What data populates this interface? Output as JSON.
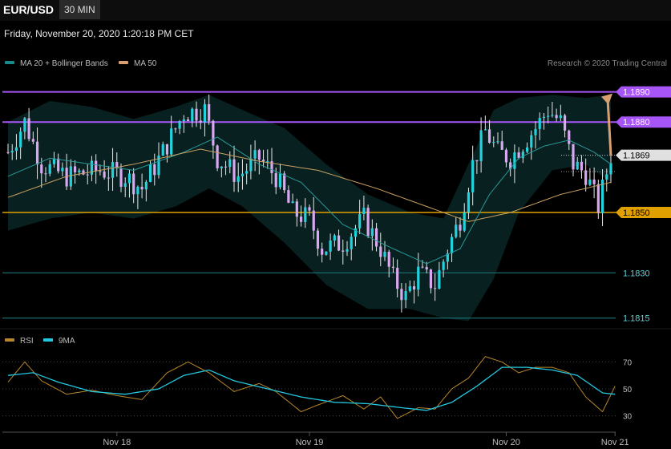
{
  "header": {
    "symbol": "EUR/USD",
    "timeframe": "30 MIN",
    "datetime": "Friday, November 20, 2020 1:20:18 PM CET"
  },
  "legend": {
    "items": [
      {
        "label": "MA 20 + Bollinger Bands",
        "color": "#1a8a8a"
      },
      {
        "label": "MA 50",
        "color": "#d8a070"
      }
    ],
    "credit": "Research © 2020 Trading Central"
  },
  "rsi_legend": {
    "items": [
      {
        "label": "RSI",
        "color": "#b8862b"
      },
      {
        "label": "9MA",
        "color": "#22c8e0"
      }
    ]
  },
  "colors": {
    "up": "#22d3dd",
    "down": "#d8a8f0",
    "resistance": "#a855f7",
    "support": "#e0a000",
    "teal_line": "#1a6b6b",
    "arrow": "#d8a070",
    "last_price": "#e0e0e0"
  },
  "chart_data": [
    {
      "type": "candlestick",
      "title": "",
      "y_range": [
        1.1812,
        1.1896
      ],
      "levels": [
        {
          "value": 1.189,
          "label": "1.1890",
          "kind": "resistance"
        },
        {
          "value": 1.188,
          "label": "1.1880",
          "kind": "resistance"
        },
        {
          "value": 1.1869,
          "label": "1.1869",
          "kind": "last"
        },
        {
          "value": 1.185,
          "label": "1.1850",
          "kind": "support"
        },
        {
          "value": 1.183,
          "label": "1.1830",
          "kind": "minor"
        },
        {
          "value": 1.1815,
          "label": "1.1815",
          "kind": "minor"
        }
      ],
      "x_tick_labels": [
        "Nov 18",
        "Nov 19",
        "Nov 20",
        "Nov 21"
      ],
      "x_tick_index": [
        26,
        72,
        119,
        145
      ],
      "arrow": {
        "from_index": 144,
        "from": 1.1869,
        "to_index": 158,
        "to": 1.189
      },
      "close_path": [
        [
          0,
          1.187
        ],
        [
          4,
          1.188
        ],
        [
          8,
          1.1866
        ],
        [
          14,
          1.1862
        ],
        [
          22,
          1.1864
        ],
        [
          28,
          1.1862
        ],
        [
          32,
          1.1858
        ],
        [
          37,
          1.187
        ],
        [
          42,
          1.1883
        ],
        [
          47,
          1.1884
        ],
        [
          50,
          1.1868
        ],
        [
          55,
          1.1862
        ],
        [
          60,
          1.1868
        ],
        [
          64,
          1.1862
        ],
        [
          68,
          1.185
        ],
        [
          72,
          1.1848
        ],
        [
          75,
          1.1838
        ],
        [
          80,
          1.184
        ],
        [
          85,
          1.1848
        ],
        [
          89,
          1.1838
        ],
        [
          92,
          1.1828
        ],
        [
          95,
          1.1822
        ],
        [
          98,
          1.183
        ],
        [
          102,
          1.1826
        ],
        [
          105,
          1.1838
        ],
        [
          108,
          1.1848
        ],
        [
          111,
          1.1866
        ],
        [
          114,
          1.1877
        ],
        [
          117,
          1.187
        ],
        [
          120,
          1.1868
        ],
        [
          123,
          1.1873
        ],
        [
          126,
          1.1878
        ],
        [
          129,
          1.1884
        ],
        [
          132,
          1.188
        ],
        [
          135,
          1.1866
        ],
        [
          138,
          1.1863
        ],
        [
          141,
          1.1852
        ],
        [
          144,
          1.1869
        ]
      ],
      "candle_count": 145,
      "ma20_path": [
        [
          0,
          1.1862
        ],
        [
          10,
          1.1868
        ],
        [
          20,
          1.1866
        ],
        [
          30,
          1.1864
        ],
        [
          42,
          1.187
        ],
        [
          50,
          1.1875
        ],
        [
          60,
          1.1866
        ],
        [
          70,
          1.186
        ],
        [
          80,
          1.1846
        ],
        [
          92,
          1.1838
        ],
        [
          100,
          1.1833
        ],
        [
          108,
          1.1838
        ],
        [
          115,
          1.1856
        ],
        [
          122,
          1.1868
        ],
        [
          128,
          1.1872
        ],
        [
          134,
          1.1874
        ],
        [
          140,
          1.187
        ],
        [
          144,
          1.1866
        ]
      ],
      "ma50_path": [
        [
          0,
          1.1855
        ],
        [
          14,
          1.1862
        ],
        [
          30,
          1.1866
        ],
        [
          46,
          1.1871
        ],
        [
          60,
          1.1867
        ],
        [
          74,
          1.1864
        ],
        [
          88,
          1.1858
        ],
        [
          100,
          1.1852
        ],
        [
          110,
          1.1847
        ],
        [
          120,
          1.185
        ],
        [
          132,
          1.1856
        ],
        [
          144,
          1.186
        ]
      ],
      "bb_upper_path": [
        [
          0,
          1.188
        ],
        [
          10,
          1.1887
        ],
        [
          20,
          1.1885
        ],
        [
          30,
          1.1881
        ],
        [
          40,
          1.1885
        ],
        [
          48,
          1.1889
        ],
        [
          56,
          1.1884
        ],
        [
          66,
          1.1878
        ],
        [
          76,
          1.1866
        ],
        [
          86,
          1.1856
        ],
        [
          96,
          1.185
        ],
        [
          104,
          1.1848
        ],
        [
          110,
          1.1866
        ],
        [
          116,
          1.1884
        ],
        [
          122,
          1.1888
        ],
        [
          130,
          1.1889
        ],
        [
          138,
          1.1888
        ],
        [
          144,
          1.1889
        ]
      ],
      "bb_lower_path": [
        [
          0,
          1.1844
        ],
        [
          10,
          1.1848
        ],
        [
          20,
          1.185
        ],
        [
          30,
          1.1848
        ],
        [
          40,
          1.1852
        ],
        [
          48,
          1.1858
        ],
        [
          56,
          1.1852
        ],
        [
          66,
          1.184
        ],
        [
          76,
          1.1826
        ],
        [
          86,
          1.1818
        ],
        [
          96,
          1.1818
        ],
        [
          104,
          1.1815
        ],
        [
          110,
          1.1814
        ],
        [
          116,
          1.1828
        ],
        [
          122,
          1.185
        ],
        [
          130,
          1.1864
        ],
        [
          138,
          1.1866
        ],
        [
          144,
          1.186
        ]
      ]
    },
    {
      "type": "line",
      "title": "",
      "y_range": [
        22,
        78
      ],
      "y_ticks": [
        30,
        50,
        70
      ],
      "series": [
        {
          "name": "RSI",
          "path": [
            [
              0,
              55
            ],
            [
              4,
              70
            ],
            [
              8,
              56
            ],
            [
              14,
              46
            ],
            [
              20,
              49
            ],
            [
              26,
              45
            ],
            [
              32,
              42
            ],
            [
              38,
              62
            ],
            [
              43,
              70
            ],
            [
              48,
              62
            ],
            [
              54,
              48
            ],
            [
              60,
              54
            ],
            [
              64,
              48
            ],
            [
              70,
              33
            ],
            [
              74,
              38
            ],
            [
              80,
              45
            ],
            [
              85,
              35
            ],
            [
              89,
              44
            ],
            [
              93,
              28
            ],
            [
              98,
              36
            ],
            [
              102,
              35
            ],
            [
              106,
              50
            ],
            [
              110,
              58
            ],
            [
              114,
              74
            ],
            [
              118,
              70
            ],
            [
              122,
              62
            ],
            [
              126,
              66
            ],
            [
              130,
              66
            ],
            [
              134,
              62
            ],
            [
              138,
              44
            ],
            [
              142,
              33
            ],
            [
              145,
              52
            ]
          ]
        },
        {
          "name": "9MA",
          "path": [
            [
              0,
              60
            ],
            [
              6,
              62
            ],
            [
              12,
              55
            ],
            [
              20,
              48
            ],
            [
              28,
              46
            ],
            [
              36,
              50
            ],
            [
              42,
              60
            ],
            [
              48,
              64
            ],
            [
              54,
              56
            ],
            [
              62,
              50
            ],
            [
              70,
              44
            ],
            [
              78,
              40
            ],
            [
              86,
              39
            ],
            [
              94,
              36
            ],
            [
              100,
              34
            ],
            [
              106,
              40
            ],
            [
              112,
              52
            ],
            [
              118,
              66
            ],
            [
              124,
              66
            ],
            [
              130,
              64
            ],
            [
              136,
              60
            ],
            [
              142,
              47
            ],
            [
              145,
              46
            ]
          ]
        }
      ]
    }
  ]
}
